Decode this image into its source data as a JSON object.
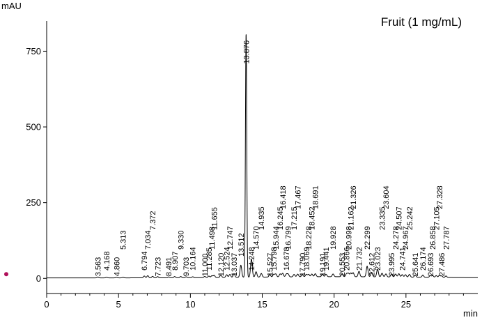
{
  "chart_data": {
    "type": "line",
    "title": "Fruit (1 mg/mL)",
    "ylabel": "mAU",
    "xlabel": "min",
    "xlim": [
      0,
      30
    ],
    "ylim": [
      -50,
      850
    ],
    "x_ticks": [
      0,
      5,
      10,
      15,
      20,
      25
    ],
    "y_ticks": [
      0,
      250,
      500,
      750
    ],
    "marker_color": "#b0105a",
    "line_color": "#000000",
    "peaks": [
      {
        "t": 3.563,
        "label": "3.563",
        "h": 3
      },
      {
        "t": 4.168,
        "label": "4.168",
        "h": 2
      },
      {
        "t": 4.86,
        "label": "4.860",
        "h": 2
      },
      {
        "t": 5.313,
        "label": "5.313",
        "h": 2
      },
      {
        "t": 6.794,
        "label": "6.794",
        "h": 6
      },
      {
        "t": 7.034,
        "label": "7.034",
        "h": 7
      },
      {
        "t": 7.372,
        "label": "7.372",
        "h": 5
      },
      {
        "t": 7.723,
        "label": "7.723",
        "h": 4
      },
      {
        "t": 8.491,
        "label": "8.491",
        "h": 3
      },
      {
        "t": 8.907,
        "label": "8.907",
        "h": 4
      },
      {
        "t": 9.33,
        "label": "9.330",
        "h": 4
      },
      {
        "t": 9.703,
        "label": "9.703",
        "h": 3
      },
      {
        "t": 10.164,
        "label": "10.164",
        "h": 3
      },
      {
        "t": 11.0,
        "label": "11.000",
        "h": 4
      },
      {
        "t": 11.285,
        "label": "11.285",
        "h": 5
      },
      {
        "t": 11.498,
        "label": "11.498",
        "h": 6
      },
      {
        "t": 11.655,
        "label": "11.655",
        "h": 7
      },
      {
        "t": 12.12,
        "label": "12.120",
        "h": 8
      },
      {
        "t": 12.524,
        "label": "12.524",
        "h": 9
      },
      {
        "t": 12.747,
        "label": "12.747",
        "h": 10
      },
      {
        "t": 13.037,
        "label": "13.037",
        "h": 12
      },
      {
        "t": 13.512,
        "label": "13.512",
        "h": 40
      },
      {
        "t": 13.876,
        "label": "13.876",
        "h": 805
      },
      {
        "t": 14.248,
        "label": "14.248",
        "h": 60
      },
      {
        "t": 14.57,
        "label": "14.570",
        "h": 18
      },
      {
        "t": 14.935,
        "label": "14.935",
        "h": 12
      },
      {
        "t": 15.527,
        "label": "15.527",
        "h": 8
      },
      {
        "t": 15.798,
        "label": "15.798",
        "h": 9
      },
      {
        "t": 15.944,
        "label": "15.944",
        "h": 10
      },
      {
        "t": 16.245,
        "label": "16.245",
        "h": 10
      },
      {
        "t": 16.418,
        "label": "16.418",
        "h": 12
      },
      {
        "t": 16.678,
        "label": "16.678",
        "h": 9
      },
      {
        "t": 16.799,
        "label": "16.799",
        "h": 9
      },
      {
        "t": 17.215,
        "label": "17.215",
        "h": 8
      },
      {
        "t": 17.467,
        "label": "17.467",
        "h": 9
      },
      {
        "t": 17.79,
        "label": "17.790",
        "h": 7
      },
      {
        "t": 18.069,
        "label": "18.069",
        "h": 8
      },
      {
        "t": 18.228,
        "label": "18.228",
        "h": 8
      },
      {
        "t": 18.452,
        "label": "18.452",
        "h": 9
      },
      {
        "t": 18.691,
        "label": "18.691",
        "h": 10
      },
      {
        "t": 19.191,
        "label": "19.191",
        "h": 8
      },
      {
        "t": 19.441,
        "label": "19.441",
        "h": 8
      },
      {
        "t": 19.928,
        "label": "19.928",
        "h": 9
      },
      {
        "t": 20.553,
        "label": "20.553",
        "h": 9
      },
      {
        "t": 20.866,
        "label": "20.866",
        "h": 10
      },
      {
        "t": 20.998,
        "label": "20.998",
        "h": 11
      },
      {
        "t": 21.162,
        "label": "21.162",
        "h": 12
      },
      {
        "t": 21.326,
        "label": "21.326",
        "h": 13
      },
      {
        "t": 21.732,
        "label": "21.732",
        "h": 18
      },
      {
        "t": 22.299,
        "label": "22.299",
        "h": 35
      },
      {
        "t": 22.612,
        "label": "22.612",
        "h": 15
      },
      {
        "t": 23.023,
        "label": "23.023",
        "h": 25
      },
      {
        "t": 23.335,
        "label": "23.335",
        "h": 12
      },
      {
        "t": 23.604,
        "label": "23.604",
        "h": 10
      },
      {
        "t": 23.995,
        "label": "23.995",
        "h": 9
      },
      {
        "t": 24.278,
        "label": "24.278",
        "h": 10
      },
      {
        "t": 24.507,
        "label": "24.507",
        "h": 11
      },
      {
        "t": 24.741,
        "label": "24.741",
        "h": 8
      },
      {
        "t": 24.967,
        "label": "24.967",
        "h": 8
      },
      {
        "t": 25.242,
        "label": "25.242",
        "h": 9
      },
      {
        "t": 25.641,
        "label": "25.641",
        "h": 7
      },
      {
        "t": 26.174,
        "label": "26.174",
        "h": 7
      },
      {
        "t": 26.693,
        "label": "26.693",
        "h": 6
      },
      {
        "t": 26.858,
        "label": "26.858",
        "h": 6
      },
      {
        "t": 27.105,
        "label": "27.105",
        "h": 6
      },
      {
        "t": 27.328,
        "label": "27.328",
        "h": 7
      },
      {
        "t": 27.486,
        "label": "27.486",
        "h": 5
      },
      {
        "t": 27.787,
        "label": "27.787",
        "h": 5
      }
    ]
  }
}
